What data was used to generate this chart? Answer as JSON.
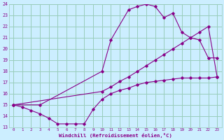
{
  "xlabel": "Windchill (Refroidissement éolien,°C)",
  "bg_color": "#cceeff",
  "grid_color": "#99ccbb",
  "line_color": "#880088",
  "xlim": [
    -0.5,
    23.5
  ],
  "ylim": [
    13,
    24
  ],
  "xticks": [
    0,
    1,
    2,
    3,
    4,
    5,
    6,
    7,
    8,
    9,
    10,
    11,
    12,
    13,
    14,
    15,
    16,
    17,
    18,
    19,
    20,
    21,
    22,
    23
  ],
  "yticks": [
    13,
    14,
    15,
    16,
    17,
    18,
    19,
    20,
    21,
    22,
    23,
    24
  ],
  "line1_x": [
    0,
    1,
    2,
    3,
    4,
    5,
    6,
    7,
    8,
    9,
    10,
    11,
    12,
    13,
    14,
    15,
    16,
    17,
    18,
    19,
    20,
    21,
    22,
    23
  ],
  "line1_y": [
    15.0,
    14.8,
    14.5,
    14.2,
    13.8,
    13.3,
    13.3,
    13.3,
    13.3,
    14.6,
    15.5,
    16.0,
    16.3,
    16.5,
    16.8,
    17.0,
    17.1,
    17.2,
    17.3,
    17.4,
    17.4,
    17.4,
    17.4,
    17.5
  ],
  "line2_x": [
    0,
    3,
    10,
    11,
    13,
    14,
    15,
    16,
    17,
    18,
    19,
    20,
    21,
    22,
    23
  ],
  "line2_y": [
    15.0,
    15.0,
    18.0,
    20.8,
    23.5,
    23.8,
    24.0,
    23.8,
    22.8,
    23.2,
    21.5,
    21.0,
    20.8,
    19.2,
    19.2
  ],
  "line3_x": [
    0,
    10,
    11,
    12,
    13,
    14,
    15,
    16,
    17,
    18,
    19,
    20,
    21,
    22,
    23
  ],
  "line3_y": [
    15.0,
    16.2,
    16.6,
    17.1,
    17.5,
    18.0,
    18.5,
    19.0,
    19.5,
    20.0,
    20.5,
    21.0,
    21.5,
    22.0,
    17.5
  ]
}
